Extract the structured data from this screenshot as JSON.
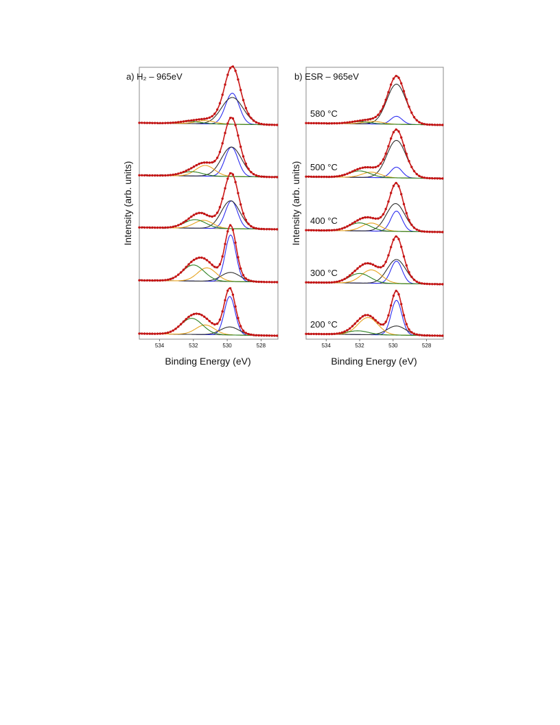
{
  "figure": {
    "x_label": "Binding Energy (eV)",
    "y_label": "Intensity (arb. units)"
  },
  "colors": {
    "raw": "#1a1a1a",
    "fit": "#d21d1d",
    "markers": "#c41414",
    "comp_lattice": "#2b2bf0",
    "comp_broad": "#2d2d2d",
    "comp_mid": "#e6a21c",
    "comp_high": "#2a7f1e",
    "background": "#4d4d4d",
    "frame": "#888888"
  },
  "chart_data": [
    {
      "type": "line",
      "panel": "a",
      "title": "a) H₂ – 965eV",
      "xlabel": "Binding Energy (eV)",
      "ylabel": "Intensity (arb. units)",
      "xlim": [
        535.2,
        527.0
      ],
      "x_reversed": true,
      "xticks": [
        534,
        532,
        530,
        528
      ],
      "spectra": [
        {
          "label": "",
          "bg_left": 0.04,
          "bg_right": 0.0,
          "peaks": [
            {
              "component": "lattice",
              "center": 529.7,
              "fwhm": 0.95,
              "height": 0.58
            },
            {
              "component": "broad",
              "center": 529.7,
              "fwhm": 1.5,
              "height": 0.5
            },
            {
              "component": "mid",
              "center": 531.3,
              "fwhm": 1.3,
              "height": 0.06
            },
            {
              "component": "high",
              "center": 532.2,
              "fwhm": 1.5,
              "height": 0.04
            }
          ]
        },
        {
          "label": "",
          "bg_left": 0.035,
          "bg_right": 0.0,
          "peaks": [
            {
              "component": "lattice",
              "center": 529.75,
              "fwhm": 0.9,
              "height": 0.55
            },
            {
              "component": "broad",
              "center": 529.75,
              "fwhm": 1.4,
              "height": 0.55
            },
            {
              "component": "mid",
              "center": 531.3,
              "fwhm": 1.3,
              "height": 0.2
            },
            {
              "component": "high",
              "center": 532.1,
              "fwhm": 1.5,
              "height": 0.08
            }
          ]
        },
        {
          "label": "",
          "bg_left": 0.035,
          "bg_right": 0.0,
          "peaks": [
            {
              "component": "lattice",
              "center": 529.75,
              "fwhm": 0.85,
              "height": 0.52
            },
            {
              "component": "broad",
              "center": 529.8,
              "fwhm": 1.3,
              "height": 0.52
            },
            {
              "component": "mid",
              "center": 531.4,
              "fwhm": 1.3,
              "height": 0.15
            },
            {
              "component": "high",
              "center": 531.9,
              "fwhm": 1.5,
              "height": 0.16
            }
          ]
        },
        {
          "label": "",
          "bg_left": 0.035,
          "bg_right": 0.0,
          "peaks": [
            {
              "component": "lattice",
              "center": 529.8,
              "fwhm": 0.75,
              "height": 0.87
            },
            {
              "component": "broad",
              "center": 529.8,
              "fwhm": 1.3,
              "height": 0.17
            },
            {
              "component": "mid",
              "center": 531.2,
              "fwhm": 1.3,
              "height": 0.25
            },
            {
              "component": "high",
              "center": 532.0,
              "fwhm": 1.5,
              "height": 0.3
            }
          ]
        },
        {
          "label": "",
          "bg_left": 0.04,
          "bg_right": 0.0,
          "peaks": [
            {
              "component": "lattice",
              "center": 529.85,
              "fwhm": 0.75,
              "height": 0.72
            },
            {
              "component": "broad",
              "center": 529.85,
              "fwhm": 1.3,
              "height": 0.15
            },
            {
              "component": "mid",
              "center": 531.3,
              "fwhm": 1.3,
              "height": 0.18
            },
            {
              "component": "high",
              "center": 532.1,
              "fwhm": 1.5,
              "height": 0.3
            }
          ]
        }
      ]
    },
    {
      "type": "line",
      "panel": "b",
      "title": "b) ESR – 965eV",
      "xlabel": "Binding Energy (eV)",
      "ylabel": "Intensity (arb. units)",
      "xlim": [
        535.2,
        527.0
      ],
      "x_reversed": true,
      "xticks": [
        534,
        532,
        530,
        528
      ],
      "spectra": [
        {
          "label": "580 °C",
          "bg_left": 0.035,
          "bg_right": 0.0,
          "peaks": [
            {
              "component": "lattice",
              "center": 529.8,
              "fwhm": 0.8,
              "height": 0.15
            },
            {
              "component": "broad",
              "center": 529.8,
              "fwhm": 1.35,
              "height": 0.75
            },
            {
              "component": "mid",
              "center": 531.2,
              "fwhm": 1.3,
              "height": 0.05
            },
            {
              "component": "high",
              "center": 532.0,
              "fwhm": 1.5,
              "height": 0.04
            }
          ]
        },
        {
          "label": "500 °C",
          "bg_left": 0.035,
          "bg_right": 0.0,
          "peaks": [
            {
              "component": "lattice",
              "center": 529.8,
              "fwhm": 0.8,
              "height": 0.2
            },
            {
              "component": "broad",
              "center": 529.8,
              "fwhm": 1.35,
              "height": 0.7
            },
            {
              "component": "mid",
              "center": 531.3,
              "fwhm": 1.3,
              "height": 0.1
            },
            {
              "component": "high",
              "center": 532.0,
              "fwhm": 1.5,
              "height": 0.12
            }
          ]
        },
        {
          "label": "400 °C",
          "bg_left": 0.035,
          "bg_right": 0.0,
          "peaks": [
            {
              "component": "lattice",
              "center": 529.8,
              "fwhm": 0.8,
              "height": 0.38
            },
            {
              "component": "broad",
              "center": 529.85,
              "fwhm": 1.3,
              "height": 0.52
            },
            {
              "component": "mid",
              "center": 531.3,
              "fwhm": 1.3,
              "height": 0.15
            },
            {
              "component": "high",
              "center": 532.0,
              "fwhm": 1.5,
              "height": 0.15
            }
          ]
        },
        {
          "label": "300 °C",
          "bg_left": 0.035,
          "bg_right": 0.0,
          "peaks": [
            {
              "component": "lattice",
              "center": 529.8,
              "fwhm": 0.8,
              "height": 0.42
            },
            {
              "component": "broad",
              "center": 529.8,
              "fwhm": 1.3,
              "height": 0.45
            },
            {
              "component": "mid",
              "center": 531.3,
              "fwhm": 1.4,
              "height": 0.25
            },
            {
              "component": "high",
              "center": 532.0,
              "fwhm": 1.5,
              "height": 0.18
            }
          ]
        },
        {
          "label": "200 °C",
          "bg_left": 0.035,
          "bg_right": 0.0,
          "peaks": [
            {
              "component": "lattice",
              "center": 529.8,
              "fwhm": 0.75,
              "height": 0.65
            },
            {
              "component": "broad",
              "center": 529.8,
              "fwhm": 1.3,
              "height": 0.17
            },
            {
              "component": "mid",
              "center": 531.5,
              "fwhm": 1.4,
              "height": 0.32
            },
            {
              "component": "high",
              "center": 532.1,
              "fwhm": 1.5,
              "height": 0.07
            }
          ]
        }
      ]
    }
  ]
}
